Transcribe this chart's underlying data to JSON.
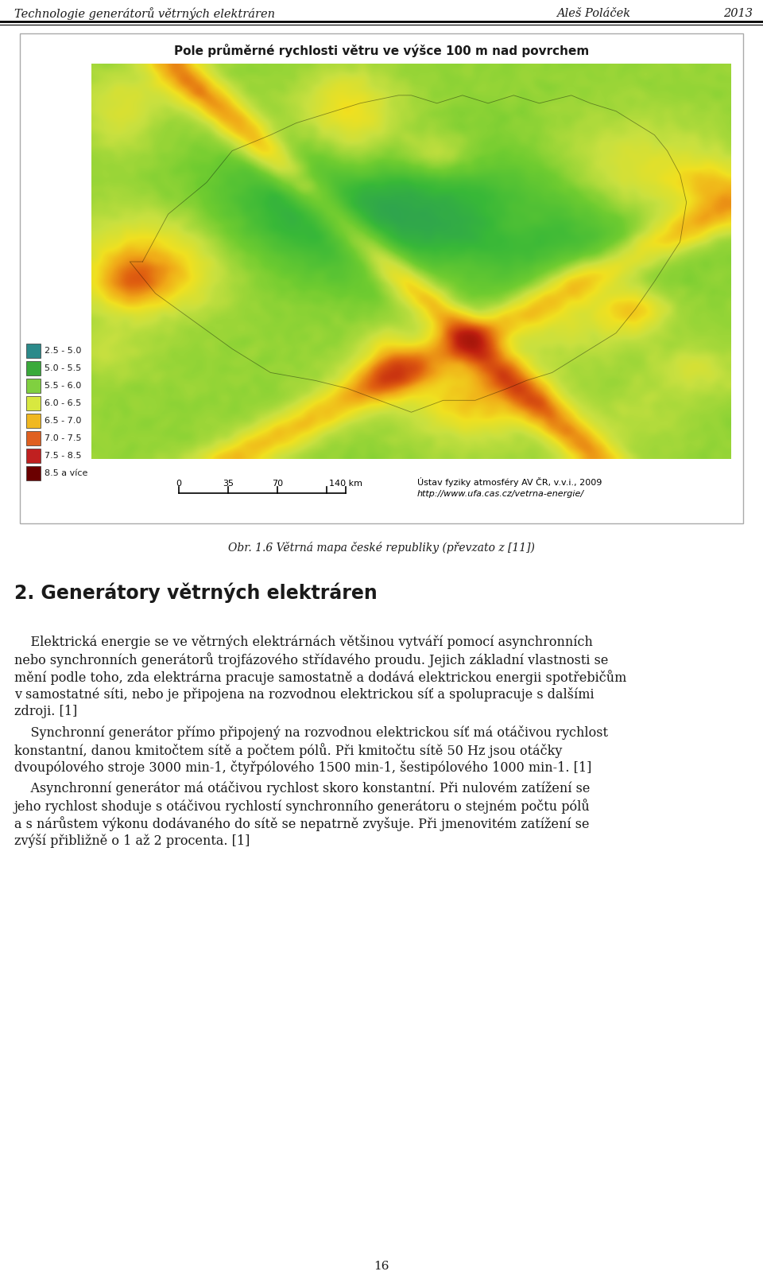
{
  "header_left": "Technologie generátorů větrných elektráren",
  "header_right_name": "Aleš Poláček",
  "header_right_year": "2013",
  "figure_caption": "Obr. 1.6 Větrná mapa české republiky (převzato z [11])",
  "map_title": "Pole průměrné rychlosti větru ve výšce 100 m nad povrchem",
  "section_title": "2. Generátory větrných elektráren",
  "para1_indent": "    Elektrická energie se ve větrných elektrárnách většinou vytváří pomocí asynchronních",
  "para1_lines": [
    "    Elektrická energie se ve větrných elektrárnách většinou vytváří pomocí asynchronních",
    "nebo synchronních generátorů trojfázového střídavého proudu. Jejich základní vlastnosti se",
    "mění podle toho, zda elektrárna pracuje samostatně a dodává elektrickou energii spotřebičům",
    "v samostatné síti, nebo je připojena na rozvodnou elektrickou síť a spolupracuje s dalšími",
    "zdroji. [1]"
  ],
  "para2_lines": [
    "    Synchronní generátor přímo připojený na rozvodnou elektrickou síť má otáčivou rychlost",
    "konstantní, danou kmitočtem sítě a počtem pólů. Při kmitočtu sítě 50 Hz jsou otáčky",
    "dvoupólového stroje 3000 min-1, čtyřpólového 1500 min-1, šestipólového 1000 min-1. [1]"
  ],
  "para3_lines": [
    "    Asynchronní generátor má otáčivou rychlost skoro konstantní. Při nulovém zatížení se",
    "jeho rychlost shoduje s otáčivou rychlostí synchronního generátoru o stejném počtu pólů",
    "a s nárůstem výkonu dodávaného do sítě se nepatrně zvyšuje. Při jmenovitém zatížení se",
    "zvýší přibližně o 1 až 2 procenta. [1]"
  ],
  "page_number": "16",
  "legend_items": [
    {
      "label": "2.5 - 5.0",
      "color": "#2b8a8a"
    },
    {
      "label": "5.0 - 5.5",
      "color": "#3aaa3a"
    },
    {
      "label": "5.5 - 6.0",
      "color": "#80d040"
    },
    {
      "label": "6.0 - 6.5",
      "color": "#d8e840"
    },
    {
      "label": "6.5 - 7.0",
      "color": "#f0b820"
    },
    {
      "label": "7.0 - 7.5",
      "color": "#e06020"
    },
    {
      "label": "7.5 - 8.5",
      "color": "#c02020"
    },
    {
      "label": "8.5 a více",
      "color": "#6b0000"
    }
  ],
  "map_source_line1": "Ústav fyziky atmosféry AV ČR, v.v.i., 2009",
  "map_source_line2": "http://www.ufa.cas.cz/vetrna-energie/",
  "background_color": "#ffffff",
  "text_color": "#1a1a1a",
  "header_line_color": "#000000"
}
